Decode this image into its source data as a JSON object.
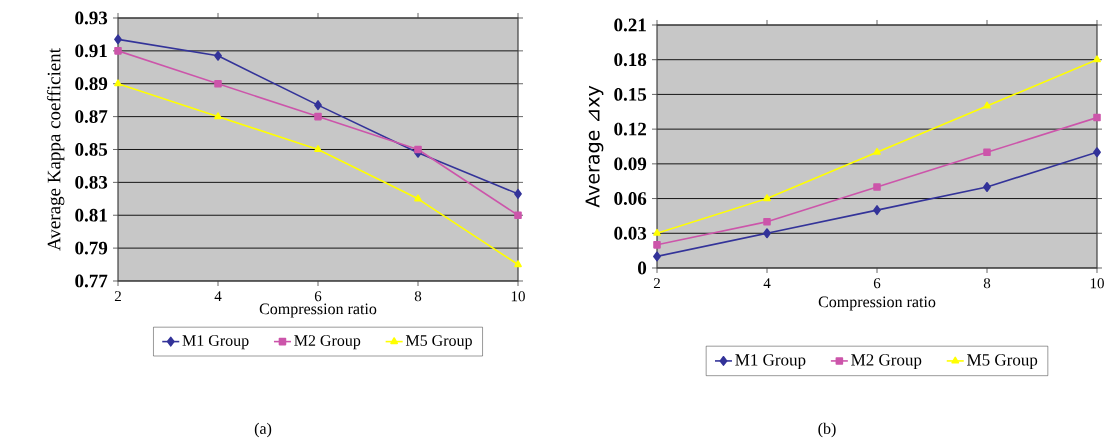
{
  "chart_data": [
    {
      "type": "line",
      "xlabel": "Compression ratio",
      "ylabel": "Average Kappa coefficient",
      "x": [
        2,
        4,
        6,
        8,
        10
      ],
      "xlim": [
        2,
        10
      ],
      "xticks": [
        2,
        4,
        6,
        8,
        10
      ],
      "ylim": [
        0.77,
        0.93
      ],
      "yticks": [
        0.77,
        0.79,
        0.81,
        0.83,
        0.85,
        0.87,
        0.89,
        0.91,
        0.93
      ],
      "grid": "y",
      "legend": "bottom",
      "annotations": [
        "(a)"
      ],
      "series": [
        {
          "name": "M1 Group",
          "color": "#333399",
          "marker": "diamond",
          "values": [
            0.917,
            0.907,
            0.877,
            0.848,
            0.823
          ]
        },
        {
          "name": "M2 Group",
          "color": "#cc55aa",
          "marker": "square",
          "values": [
            0.91,
            0.89,
            0.87,
            0.85,
            0.81
          ]
        },
        {
          "name": "M5 Group",
          "color": "#ffff00",
          "marker": "triangle",
          "values": [
            0.89,
            0.87,
            0.85,
            0.82,
            0.78
          ]
        }
      ]
    },
    {
      "type": "line",
      "xlabel": "Compression ratio",
      "ylabel": "Average ⊿xy",
      "x": [
        2,
        4,
        6,
        8,
        10
      ],
      "xlim": [
        2,
        10
      ],
      "xticks": [
        2,
        4,
        6,
        8,
        10
      ],
      "ylim": [
        0,
        0.21
      ],
      "yticks": [
        0,
        0.03,
        0.06,
        0.09,
        0.12,
        0.15,
        0.18,
        0.21
      ],
      "grid": "y",
      "legend": "bottom",
      "annotations": [
        "(b)"
      ],
      "series": [
        {
          "name": "M1 Group",
          "color": "#333399",
          "marker": "diamond",
          "values": [
            0.01,
            0.03,
            0.05,
            0.07,
            0.1
          ]
        },
        {
          "name": "M2 Group",
          "color": "#cc55aa",
          "marker": "square",
          "values": [
            0.02,
            0.04,
            0.07,
            0.1,
            0.13
          ]
        },
        {
          "name": "M5 Group",
          "color": "#ffff00",
          "marker": "triangle",
          "values": [
            0.03,
            0.06,
            0.1,
            0.14,
            0.18
          ]
        }
      ]
    }
  ]
}
